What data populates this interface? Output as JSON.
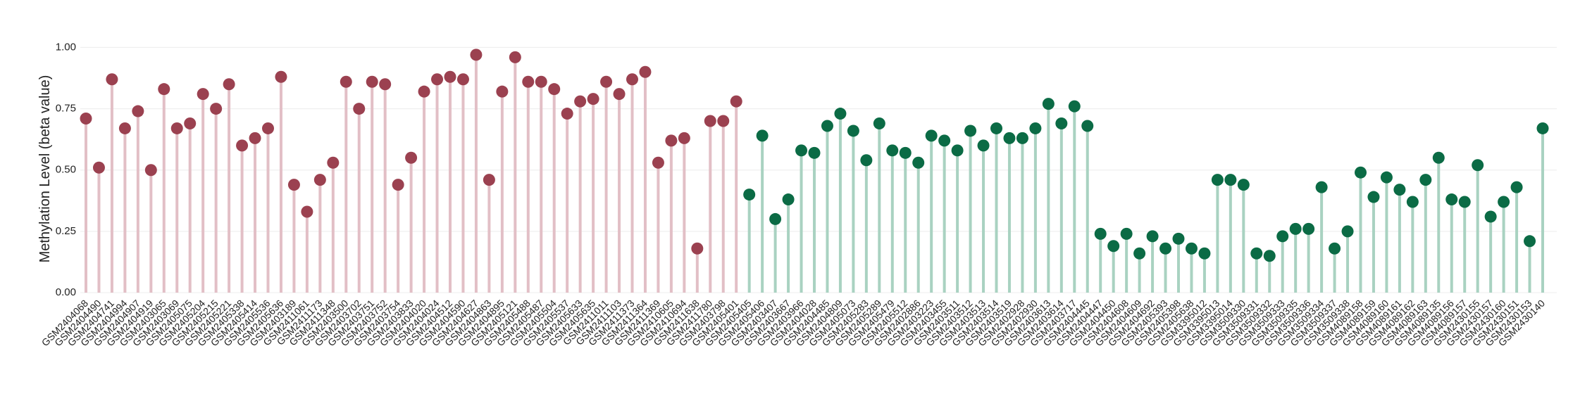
{
  "chart_data": {
    "type": "lollipop",
    "y_label": "Methylation Level (beta value)",
    "ylim": [
      0,
      1.05
    ],
    "yticks": [
      {
        "value": 0,
        "label": "0.00"
      },
      {
        "value": 0.25,
        "label": "0.25"
      },
      {
        "value": 0.5,
        "label": "0.50"
      },
      {
        "value": 0.75,
        "label": "0.75"
      },
      {
        "value": 1,
        "label": "1.00"
      }
    ],
    "grid": true,
    "categories": [
      "GSM2404068",
      "GSM2404490",
      "GSM2404741",
      "GSM2404994",
      "GSM2404907",
      "GSM2404919",
      "GSM2403065",
      "GSM2403069",
      "GSM2405075",
      "GSM2405204",
      "GSM2405215",
      "GSM2405221",
      "GSM2405338",
      "GSM2405414",
      "GSM2405536",
      "GSM2405636",
      "GSM2403189",
      "GSM2411061",
      "GSM2411173",
      "GSM2411348",
      "GSM2403500",
      "GSM2403702",
      "GSM2403751",
      "GSM2403752",
      "GSM2403754",
      "GSM2403833",
      "GSM2404020",
      "GSM2404024",
      "GSM2404512",
      "GSM2404590",
      "GSM2404627",
      "GSM2404863",
      "GSM2404895",
      "GSM2405121",
      "GSM2405488",
      "GSM2405487",
      "GSM2405504",
      "GSM2405537",
      "GSM2405633",
      "GSM2405635",
      "GSM2411011",
      "GSM2411103",
      "GSM2411373",
      "GSM2411364",
      "GSM2411369",
      "GSM2410605",
      "GSM2410694",
      "GSM2411638",
      "GSM2411780",
      "GSM2403798",
      "GSM2405401",
      "GSM2405405",
      "GSM2405406",
      "GSM2403407",
      "GSM2403667",
      "GSM2403966",
      "GSM2404028",
      "GSM2404485",
      "GSM2404809",
      "GSM2405073",
      "GSM2405283",
      "GSM2405289",
      "GSM2405479",
      "GSM2405512",
      "GSM2402886",
      "GSM2403223",
      "GSM2403455",
      "GSM2403511",
      "GSM2403512",
      "GSM2403513",
      "GSM2403514",
      "GSM2403519",
      "GSM2402928",
      "GSM2402930",
      "GSM2403613",
      "GSM2403614",
      "GSM2403717",
      "GSM2404445",
      "GSM2404447",
      "GSM2404450",
      "GSM2404608",
      "GSM2404609",
      "GSM2404692",
      "GSM2405393",
      "GSM2405398",
      "GSM2405638",
      "GSM3395012",
      "GSM3395013",
      "GSM3395014",
      "GSM3509330",
      "GSM3509331",
      "GSM3509332",
      "GSM3509333",
      "GSM3509335",
      "GSM3509336",
      "GSM3509334",
      "GSM3509337",
      "GSM3509338",
      "GSM4089158",
      "GSM4089159",
      "GSM4089160",
      "GSM4089161",
      "GSM4089162",
      "GSM4089163",
      "GSM4089135",
      "GSM4089156",
      "GSM4089157",
      "GSM2430155",
      "GSM2430157",
      "GSM2430160",
      "GSM2430151",
      "GSM2430153",
      "GSM2430140"
    ],
    "series": [
      {
        "color": "#9b4150",
        "stem_color": "#e2bfc6",
        "values": [
          0.71,
          0.51,
          0.87,
          0.67,
          0.74,
          0.5,
          0.83,
          0.67,
          0.69,
          0.81,
          0.75,
          0.85,
          0.6,
          0.63,
          0.67,
          0.88,
          0.44,
          0.33,
          0.46,
          0.53,
          0.86,
          0.75,
          0.86,
          0.85,
          0.44,
          0.55,
          0.82,
          0.87,
          0.88,
          0.87,
          0.97,
          0.46,
          0.82,
          0.96,
          0.86,
          0.86,
          0.83,
          0.73,
          0.78,
          0.79,
          0.86,
          0.81,
          0.87,
          0.9,
          0.53,
          0.62,
          0.63,
          0.18,
          0.7,
          0.7,
          0.78,
          null,
          null,
          null,
          null,
          null,
          null,
          null,
          null,
          null,
          null,
          null,
          null,
          null,
          null,
          null,
          null,
          null,
          null,
          null,
          null,
          null,
          null,
          null,
          null,
          null,
          null,
          null,
          null,
          null,
          null,
          null,
          null,
          null,
          null,
          null,
          null,
          null,
          null,
          null,
          null,
          null,
          null,
          null,
          null,
          null,
          null,
          null,
          null,
          null,
          null,
          null,
          null,
          null,
          null,
          null,
          null,
          null,
          null,
          null,
          null,
          null,
          null
        ]
      },
      {
        "color": "#0b6b45",
        "stem_color": "#a9d2c1",
        "values": [
          null,
          null,
          null,
          null,
          null,
          null,
          null,
          null,
          null,
          null,
          null,
          null,
          null,
          null,
          null,
          null,
          null,
          null,
          null,
          null,
          null,
          null,
          null,
          null,
          null,
          null,
          null,
          null,
          null,
          null,
          null,
          null,
          null,
          null,
          null,
          null,
          null,
          null,
          null,
          null,
          null,
          null,
          null,
          null,
          null,
          null,
          null,
          null,
          null,
          null,
          null,
          0.4,
          0.64,
          0.3,
          0.38,
          0.58,
          0.57,
          0.68,
          0.73,
          0.66,
          0.54,
          0.69,
          0.58,
          0.57,
          0.53,
          0.64,
          0.62,
          0.58,
          0.66,
          0.6,
          0.67,
          0.63,
          0.63,
          0.67,
          0.77,
          0.69,
          0.76,
          0.68,
          0.24,
          0.19,
          0.24,
          0.16,
          0.23,
          0.18,
          0.22,
          0.18,
          0.16,
          0.46,
          0.46,
          0.44,
          0.16,
          0.15,
          0.23,
          0.26,
          0.26,
          0.43,
          0.18,
          0.25,
          0.49,
          0.39,
          0.47,
          0.42,
          0.37,
          0.46,
          0.55,
          0.38,
          0.37,
          0.52,
          0.31,
          0.37,
          0.43,
          0.21,
          0.67
        ]
      }
    ]
  }
}
